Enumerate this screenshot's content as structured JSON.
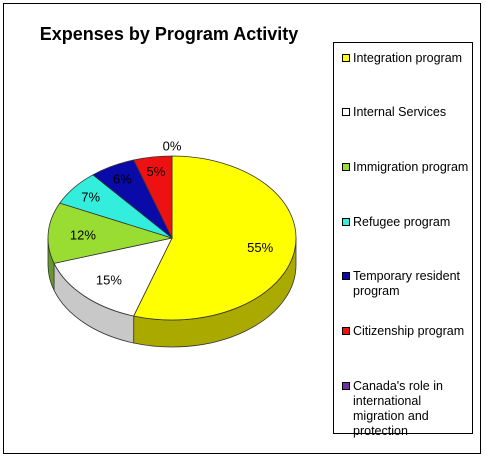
{
  "chart_data": {
    "type": "pie",
    "title": "Expenses by Program Activity",
    "series": [
      {
        "name": "Integration program",
        "value": 55,
        "label": "55%",
        "color": "#ffff00",
        "dark": "#a9a900"
      },
      {
        "name": "Internal Services",
        "value": 15,
        "label": "15%",
        "color": "#ffffff",
        "dark": "#c8c8c8"
      },
      {
        "name": "Immigration program",
        "value": 12,
        "label": "12%",
        "color": "#99dd33",
        "dark": "#66992a"
      },
      {
        "name": "Refugee program",
        "value": 7,
        "label": "7%",
        "color": "#33eedd",
        "dark": "#22a89c"
      },
      {
        "name": "Temporary resident program",
        "value": 6,
        "label": "6%",
        "color": "#0a0aa8",
        "dark": "#05056e"
      },
      {
        "name": "Citizenship program",
        "value": 5,
        "label": "5%",
        "color": "#ee1111",
        "dark": "#a00a0a"
      },
      {
        "name": "Canada's role in international migration and protection",
        "value": 0,
        "label": "0%",
        "color": "#7030a0",
        "dark": "#4a2070"
      }
    ],
    "legend_position": "right"
  }
}
